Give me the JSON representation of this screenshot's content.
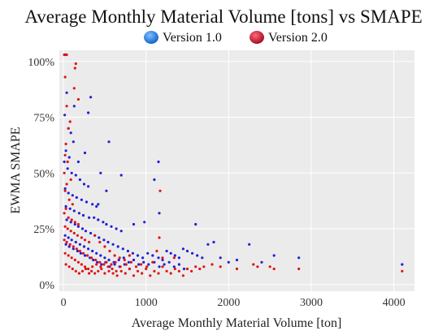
{
  "chart_data": {
    "type": "scatter",
    "title": "Average Monthly Material Volume [tons] vs SMAPE",
    "xlabel": "Average Monthly Material Volume [ton]",
    "ylabel": "EWMA SMAPE",
    "xlim": [
      -50,
      4250
    ],
    "ylim": [
      -0.03,
      1.05
    ],
    "xticks": [
      0,
      1000,
      2000,
      3000,
      4000
    ],
    "xtick_labels": [
      "0",
      "1000",
      "2000",
      "3000",
      "4000"
    ],
    "yticks": [
      0,
      0.25,
      0.5,
      0.75,
      1.0
    ],
    "ytick_labels": [
      "0%",
      "25%",
      "50%",
      "75%",
      "100%"
    ],
    "grid": true,
    "legend_position": "top-center",
    "background_color": "#ebebeb",
    "series": [
      {
        "name": "Version 1.0",
        "color": "#1f1fd6",
        "legend_color": "#2a7de1",
        "points": [
          [
            20,
            1.03
          ],
          [
            40,
            0.86
          ],
          [
            15,
            0.76
          ],
          [
            60,
            0.7
          ],
          [
            90,
            0.68
          ],
          [
            120,
            0.64
          ],
          [
            30,
            0.6
          ],
          [
            70,
            0.57
          ],
          [
            10,
            0.55
          ],
          [
            50,
            0.52
          ],
          [
            100,
            0.5
          ],
          [
            150,
            0.49
          ],
          [
            200,
            0.47
          ],
          [
            250,
            0.45
          ],
          [
            300,
            0.44
          ],
          [
            20,
            0.43
          ],
          [
            60,
            0.41
          ],
          [
            110,
            0.4
          ],
          [
            160,
            0.39
          ],
          [
            220,
            0.38
          ],
          [
            280,
            0.37
          ],
          [
            350,
            0.36
          ],
          [
            400,
            0.35
          ],
          [
            30,
            0.35
          ],
          [
            80,
            0.34
          ],
          [
            130,
            0.33
          ],
          [
            190,
            0.32
          ],
          [
            240,
            0.31
          ],
          [
            310,
            0.3
          ],
          [
            370,
            0.3
          ],
          [
            420,
            0.29
          ],
          [
            480,
            0.28
          ],
          [
            520,
            0.27
          ],
          [
            580,
            0.26
          ],
          [
            640,
            0.25
          ],
          [
            700,
            0.24
          ],
          [
            40,
            0.29
          ],
          [
            90,
            0.28
          ],
          [
            140,
            0.27
          ],
          [
            180,
            0.26
          ],
          [
            230,
            0.25
          ],
          [
            270,
            0.24
          ],
          [
            330,
            0.23
          ],
          [
            380,
            0.22
          ],
          [
            430,
            0.21
          ],
          [
            490,
            0.2
          ],
          [
            540,
            0.19
          ],
          [
            600,
            0.18
          ],
          [
            660,
            0.17
          ],
          [
            720,
            0.16
          ],
          [
            780,
            0.15
          ],
          [
            840,
            0.14
          ],
          [
            900,
            0.13
          ],
          [
            960,
            0.12
          ],
          [
            1020,
            0.14
          ],
          [
            1080,
            0.13
          ],
          [
            1150,
            0.12
          ],
          [
            1200,
            0.11
          ],
          [
            1250,
            0.15
          ],
          [
            1300,
            0.14
          ],
          [
            1350,
            0.13
          ],
          [
            1400,
            0.12
          ],
          [
            1450,
            0.16
          ],
          [
            1500,
            0.15
          ],
          [
            1560,
            0.14
          ],
          [
            1620,
            0.13
          ],
          [
            1680,
            0.12
          ],
          [
            1750,
            0.18
          ],
          [
            1820,
            0.19
          ],
          [
            1900,
            0.12
          ],
          [
            2000,
            0.1
          ],
          [
            2100,
            0.11
          ],
          [
            2250,
            0.18
          ],
          [
            2400,
            0.1
          ],
          [
            2550,
            0.13
          ],
          [
            2850,
            0.12
          ],
          [
            4100,
            0.09
          ],
          [
            20,
            0.22
          ],
          [
            60,
            0.21
          ],
          [
            100,
            0.2
          ],
          [
            150,
            0.19
          ],
          [
            200,
            0.18
          ],
          [
            250,
            0.17
          ],
          [
            300,
            0.16
          ],
          [
            350,
            0.15
          ],
          [
            400,
            0.14
          ],
          [
            450,
            0.13
          ],
          [
            500,
            0.12
          ],
          [
            550,
            0.11
          ],
          [
            610,
            0.1
          ],
          [
            670,
            0.11
          ],
          [
            730,
            0.12
          ],
          [
            790,
            0.1
          ],
          [
            850,
            0.11
          ],
          [
            910,
            0.09
          ],
          [
            970,
            0.1
          ],
          [
            1030,
            0.09
          ],
          [
            1100,
            0.1
          ],
          [
            1160,
            0.08
          ],
          [
            1220,
            0.09
          ],
          [
            1280,
            0.1
          ],
          [
            1340,
            0.08
          ],
          [
            1400,
            0.09
          ],
          [
            1460,
            0.07
          ],
          [
            30,
            0.18
          ],
          [
            70,
            0.17
          ],
          [
            120,
            0.16
          ],
          [
            170,
            0.15
          ],
          [
            210,
            0.14
          ],
          [
            260,
            0.13
          ],
          [
            320,
            0.12
          ],
          [
            360,
            0.11
          ],
          [
            410,
            0.1
          ],
          [
            460,
            0.09
          ],
          [
            510,
            0.1
          ],
          [
            560,
            0.08
          ],
          [
            620,
            0.09
          ],
          [
            680,
            0.08
          ],
          [
            740,
            0.09
          ],
          [
            800,
            0.07
          ],
          [
            130,
            0.8
          ],
          [
            300,
            0.77
          ],
          [
            550,
            0.64
          ],
          [
            700,
            0.49
          ],
          [
            1100,
            0.47
          ],
          [
            1150,
            0.55
          ],
          [
            450,
            0.5
          ],
          [
            330,
            0.84
          ],
          [
            1600,
            0.27
          ],
          [
            1160,
            0.32
          ],
          [
            850,
            0.27
          ],
          [
            980,
            0.28
          ],
          [
            520,
            0.42
          ],
          [
            420,
            0.36
          ],
          [
            260,
            0.59
          ],
          [
            180,
            0.55
          ]
        ]
      },
      {
        "name": "Version 2.0",
        "color": "#e01414",
        "legend_color": "#c8102e",
        "points": [
          [
            10,
            1.03
          ],
          [
            40,
            1.03
          ],
          [
            150,
            0.99
          ],
          [
            140,
            0.97
          ],
          [
            20,
            0.93
          ],
          [
            130,
            0.88
          ],
          [
            180,
            0.83
          ],
          [
            40,
            0.8
          ],
          [
            80,
            0.73
          ],
          [
            60,
            0.7
          ],
          [
            30,
            0.63
          ],
          [
            20,
            0.58
          ],
          [
            50,
            0.55
          ],
          [
            10,
            0.5
          ],
          [
            90,
            0.47
          ],
          [
            40,
            0.45
          ],
          [
            20,
            0.42
          ],
          [
            70,
            0.38
          ],
          [
            110,
            0.36
          ],
          [
            30,
            0.34
          ],
          [
            10,
            0.32
          ],
          [
            60,
            0.3
          ],
          [
            100,
            0.29
          ],
          [
            140,
            0.28
          ],
          [
            180,
            0.27
          ],
          [
            20,
            0.26
          ],
          [
            50,
            0.25
          ],
          [
            90,
            0.24
          ],
          [
            130,
            0.23
          ],
          [
            170,
            0.22
          ],
          [
            220,
            0.21
          ],
          [
            260,
            0.2
          ],
          [
            310,
            0.19
          ],
          [
            10,
            0.2
          ],
          [
            40,
            0.19
          ],
          [
            80,
            0.18
          ],
          [
            120,
            0.17
          ],
          [
            160,
            0.16
          ],
          [
            200,
            0.15
          ],
          [
            240,
            0.14
          ],
          [
            290,
            0.13
          ],
          [
            340,
            0.12
          ],
          [
            390,
            0.11
          ],
          [
            440,
            0.1
          ],
          [
            490,
            0.09
          ],
          [
            540,
            0.08
          ],
          [
            590,
            0.07
          ],
          [
            640,
            0.06
          ],
          [
            20,
            0.14
          ],
          [
            60,
            0.13
          ],
          [
            100,
            0.12
          ],
          [
            140,
            0.11
          ],
          [
            180,
            0.1
          ],
          [
            220,
            0.09
          ],
          [
            260,
            0.08
          ],
          [
            300,
            0.07
          ],
          [
            340,
            0.06
          ],
          [
            380,
            0.05
          ],
          [
            420,
            0.06
          ],
          [
            460,
            0.07
          ],
          [
            500,
            0.05
          ],
          [
            550,
            0.06
          ],
          [
            600,
            0.05
          ],
          [
            650,
            0.04
          ],
          [
            700,
            0.06
          ],
          [
            750,
            0.05
          ],
          [
            800,
            0.07
          ],
          [
            850,
            0.04
          ],
          [
            900,
            0.06
          ],
          [
            950,
            0.05
          ],
          [
            1000,
            0.07
          ],
          [
            1050,
            0.04
          ],
          [
            1100,
            0.06
          ],
          [
            1150,
            0.05
          ],
          [
            1200,
            0.08
          ],
          [
            1250,
            0.06
          ],
          [
            1300,
            0.05
          ],
          [
            1350,
            0.07
          ],
          [
            1400,
            0.06
          ],
          [
            1450,
            0.04
          ],
          [
            1500,
            0.07
          ],
          [
            1550,
            0.06
          ],
          [
            1600,
            0.08
          ],
          [
            1650,
            0.07
          ],
          [
            1700,
            0.08
          ],
          [
            1800,
            0.09
          ],
          [
            1900,
            0.08
          ],
          [
            2100,
            0.07
          ],
          [
            2300,
            0.09
          ],
          [
            2350,
            0.08
          ],
          [
            2500,
            0.08
          ],
          [
            2550,
            0.07
          ],
          [
            2850,
            0.07
          ],
          [
            4100,
            0.06
          ],
          [
            30,
            0.09
          ],
          [
            70,
            0.08
          ],
          [
            110,
            0.07
          ],
          [
            150,
            0.06
          ],
          [
            190,
            0.05
          ],
          [
            230,
            0.06
          ],
          [
            270,
            0.07
          ],
          [
            310,
            0.05
          ],
          [
            350,
            0.08
          ],
          [
            400,
            0.09
          ],
          [
            450,
            0.08
          ],
          [
            520,
            0.1
          ],
          [
            580,
            0.09
          ],
          [
            630,
            0.1
          ],
          [
            690,
            0.08
          ],
          [
            760,
            0.09
          ],
          [
            820,
            0.1
          ],
          [
            880,
            0.08
          ],
          [
            940,
            0.09
          ],
          [
            1010,
            0.08
          ],
          [
            1080,
            0.1
          ],
          [
            1170,
            0.42
          ],
          [
            1160,
            0.21
          ],
          [
            1200,
            0.12
          ],
          [
            1130,
            0.15
          ],
          [
            1340,
            0.12
          ],
          [
            380,
            0.22
          ],
          [
            440,
            0.19
          ],
          [
            500,
            0.17
          ],
          [
            560,
            0.15
          ],
          [
            620,
            0.13
          ],
          [
            680,
            0.12
          ],
          [
            740,
            0.11
          ],
          [
            800,
            0.13
          ]
        ]
      }
    ]
  }
}
